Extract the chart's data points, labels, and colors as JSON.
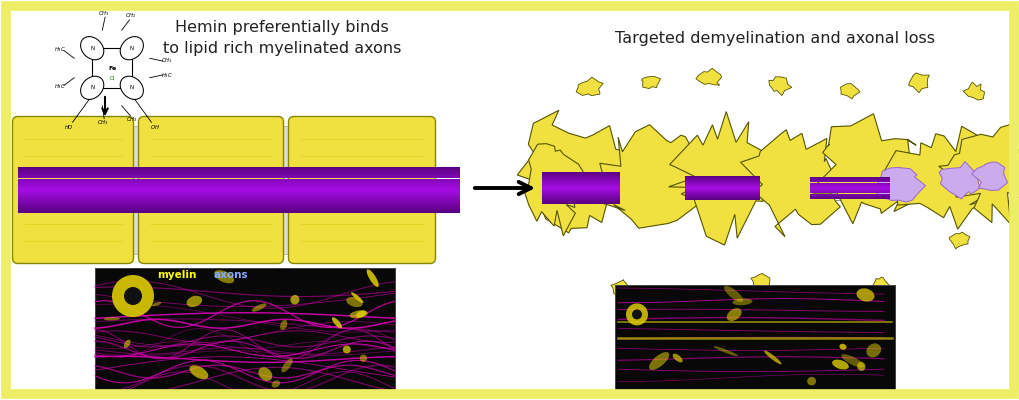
{
  "background_color": "#ffffff",
  "border_color": "#eeee66",
  "border_width": 8,
  "left_title": "Hemin preferentially binds\nto lipid rich myelinated axons",
  "right_title": "Targeted demyelination and axonal loss",
  "myelin_color": "#f0e040",
  "myelin_dark": "#b8a800",
  "axon_purple_dark": "#5500aa",
  "axon_purple_mid": "#8800dd",
  "axon_purple_light": "#cc88ff",
  "label_myelin": "myelin",
  "label_myelin_color": "#ffff00",
  "label_axons": "axons",
  "label_axons_color": "#88aaff",
  "fig_w": 10.2,
  "fig_h": 4.0
}
